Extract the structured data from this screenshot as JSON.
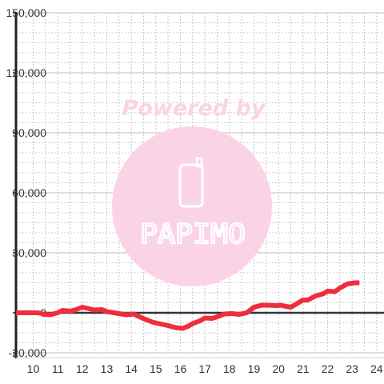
{
  "watermark": {
    "text": "Powered by",
    "logo": "PAPIMO",
    "color": "#fbd3e7"
  },
  "chart_data": {
    "type": "line",
    "ylim": [
      -20000,
      150000
    ],
    "xlim": [
      9.3,
      24.3
    ],
    "y_ticks": [
      -20000,
      0,
      30000,
      60000,
      90000,
      120000,
      150000
    ],
    "y_tick_labels": [
      "-20,000",
      "0",
      "30,000",
      "60,000",
      "90,000",
      "120,000",
      "150,000"
    ],
    "x_ticks": [
      10,
      11,
      12,
      13,
      14,
      15,
      16,
      17,
      18,
      19,
      20,
      21,
      22,
      23,
      24
    ],
    "x_tick_labels": [
      "10",
      "11",
      "12",
      "13",
      "14",
      "15",
      "16",
      "17",
      "18",
      "19",
      "20",
      "21",
      "22",
      "23",
      "24"
    ],
    "grid": true,
    "line_color": "#ee2d3d",
    "series": [
      {
        "x": [
          9.3,
          10.0,
          10.2,
          10.5,
          10.7,
          11.0,
          11.2,
          11.5,
          11.7,
          12.0,
          12.3,
          12.5,
          12.8,
          13.0,
          13.3,
          13.6,
          13.8,
          14.1,
          14.3,
          14.6,
          14.9,
          15.2,
          15.5,
          15.8,
          16.1,
          16.3,
          16.5,
          16.8,
          17.0,
          17.3,
          17.5,
          17.8,
          18.1,
          18.4,
          18.7,
          19.0,
          19.3,
          19.6,
          19.9,
          20.1,
          20.3,
          20.5,
          20.7,
          21.0,
          21.2,
          21.5,
          21.8,
          22.0,
          22.3,
          22.5,
          22.8,
          23.1,
          23.3
        ],
        "y": [
          0,
          0,
          0,
          -800,
          -1000,
          0,
          1200,
          800,
          1400,
          2800,
          2000,
          1400,
          1600,
          600,
          0,
          -600,
          -1000,
          -600,
          -1800,
          -3400,
          -4800,
          -5600,
          -6400,
          -7400,
          -7800,
          -6800,
          -5400,
          -4000,
          -2600,
          -2800,
          -2000,
          -600,
          -400,
          -800,
          0,
          2800,
          3800,
          3800,
          3600,
          3800,
          3200,
          2800,
          4200,
          6400,
          6400,
          8400,
          9400,
          10800,
          10600,
          12400,
          14400,
          15000,
          15000
        ]
      }
    ]
  }
}
